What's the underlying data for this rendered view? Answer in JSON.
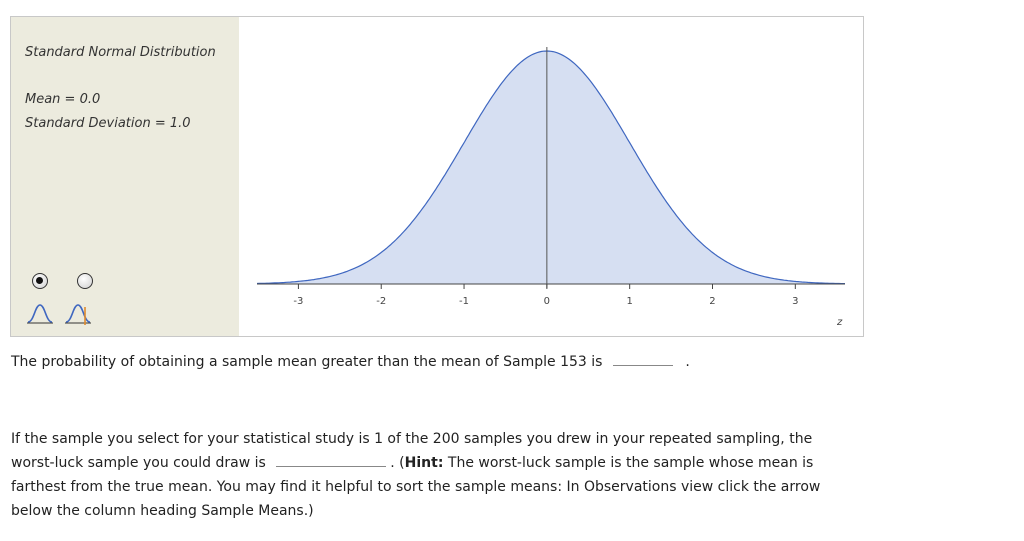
{
  "panel": {
    "title": "Standard Normal Distribution",
    "mean_label": "Mean = 0.0",
    "sd_label": "Standard Deviation = 1.0"
  },
  "controls": {
    "radio_1_selected": true,
    "radio_2_selected": false,
    "icon_1": "normal-curve-icon",
    "icon_2": "normal-curve-with-marker-icon"
  },
  "chart_data": {
    "type": "area",
    "distribution": "standard normal",
    "mean": 0.0,
    "sd": 1.0,
    "xlim": [
      -3.5,
      3.6
    ],
    "x_ticks": [
      "-3",
      "-2",
      "-1",
      "0",
      "1",
      "2",
      "3"
    ],
    "xlabel": "z",
    "marker_x": 0,
    "fill_color": "#d6dff2",
    "line_color": "#3f67c0"
  },
  "question1": {
    "text": "The probability of obtaining a sample mean greater than the mean of Sample 153 is",
    "after": "."
  },
  "question2": {
    "part1": "If the sample you select for your statistical study is 1 of the 200 samples you drew in your repeated sampling, the",
    "part2": "worst-luck sample you could draw is",
    "after_blank": ". (",
    "hint_label": "Hint:",
    "hint_text": " The worst-luck sample is the sample whose mean is",
    "line3": "farthest from the true mean. You may find it helpful to sort the sample means: In Observations view click the arrow",
    "line4": "below the column heading Sample Means.)"
  }
}
